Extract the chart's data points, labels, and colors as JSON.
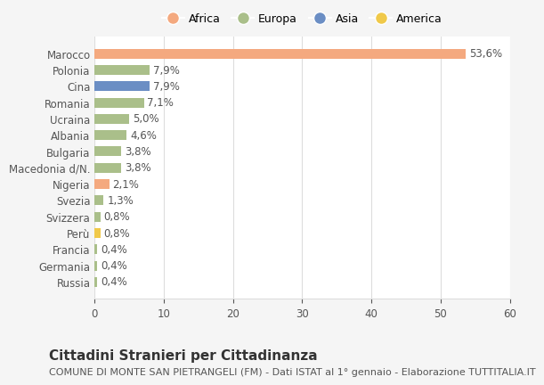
{
  "countries": [
    "Marocco",
    "Polonia",
    "Cina",
    "Romania",
    "Ucraina",
    "Albania",
    "Bulgaria",
    "Macedonia d/N.",
    "Nigeria",
    "Svezia",
    "Svizzera",
    "Perù",
    "Francia",
    "Germania",
    "Russia"
  ],
  "values": [
    53.6,
    7.9,
    7.9,
    7.1,
    5.0,
    4.6,
    3.8,
    3.8,
    2.1,
    1.3,
    0.8,
    0.8,
    0.4,
    0.4,
    0.4
  ],
  "labels": [
    "53,6%",
    "7,9%",
    "7,9%",
    "7,1%",
    "5,0%",
    "4,6%",
    "3,8%",
    "3,8%",
    "2,1%",
    "1,3%",
    "0,8%",
    "0,8%",
    "0,4%",
    "0,4%",
    "0,4%"
  ],
  "continents": [
    "Africa",
    "Europa",
    "Asia",
    "Europa",
    "Europa",
    "Europa",
    "Europa",
    "Europa",
    "Africa",
    "Europa",
    "Europa",
    "America",
    "Europa",
    "Europa",
    "Europa"
  ],
  "continent_colors": {
    "Africa": "#F4A97F",
    "Europa": "#AABF8A",
    "Asia": "#6B8EC4",
    "America": "#F0C94A"
  },
  "legend_items": [
    "Africa",
    "Europa",
    "Asia",
    "America"
  ],
  "legend_colors": [
    "#F4A97F",
    "#AABF8A",
    "#6B8EC4",
    "#F0C94A"
  ],
  "title": "Cittadini Stranieri per Cittadinanza",
  "subtitle": "COMUNE DI MONTE SAN PIETRANGELI (FM) - Dati ISTAT al 1° gennaio - Elaborazione TUTTITALIA.IT",
  "xlim": [
    0,
    60
  ],
  "xticks": [
    0,
    10,
    20,
    30,
    40,
    50,
    60
  ],
  "background_color": "#f5f5f5",
  "bar_background": "#ffffff",
  "grid_color": "#dddddd",
  "text_color": "#555555",
  "label_fontsize": 8.5,
  "tick_fontsize": 8.5,
  "title_fontsize": 11,
  "subtitle_fontsize": 8
}
